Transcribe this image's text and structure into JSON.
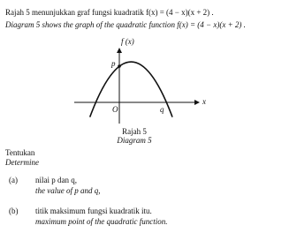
{
  "intro": {
    "malay": "Rajah 5 menunjukkan graf fungsi kuadratik f(x) = (4 − x)(x + 2) .",
    "english": "Diagram 5 shows the graph of the quadratic function f(x) = (4 − x)(x + 2) ."
  },
  "diagram": {
    "y_axis_label": "f (x)",
    "x_axis_label": "x",
    "origin_label": "O",
    "p_label": "p",
    "q_label": "q",
    "caption_malay": "Rajah 5",
    "caption_english": "Diagram 5"
  },
  "instruction": {
    "malay": "Tentukan",
    "english": "Determine"
  },
  "questions": [
    {
      "label": "(a)",
      "malay": "nilai p dan q,",
      "english": "the value of p and q,"
    },
    {
      "label": "(b)",
      "malay": "titik maksimum fungsi kuadratik itu.",
      "english": "maximum point of the quadratic function."
    }
  ]
}
